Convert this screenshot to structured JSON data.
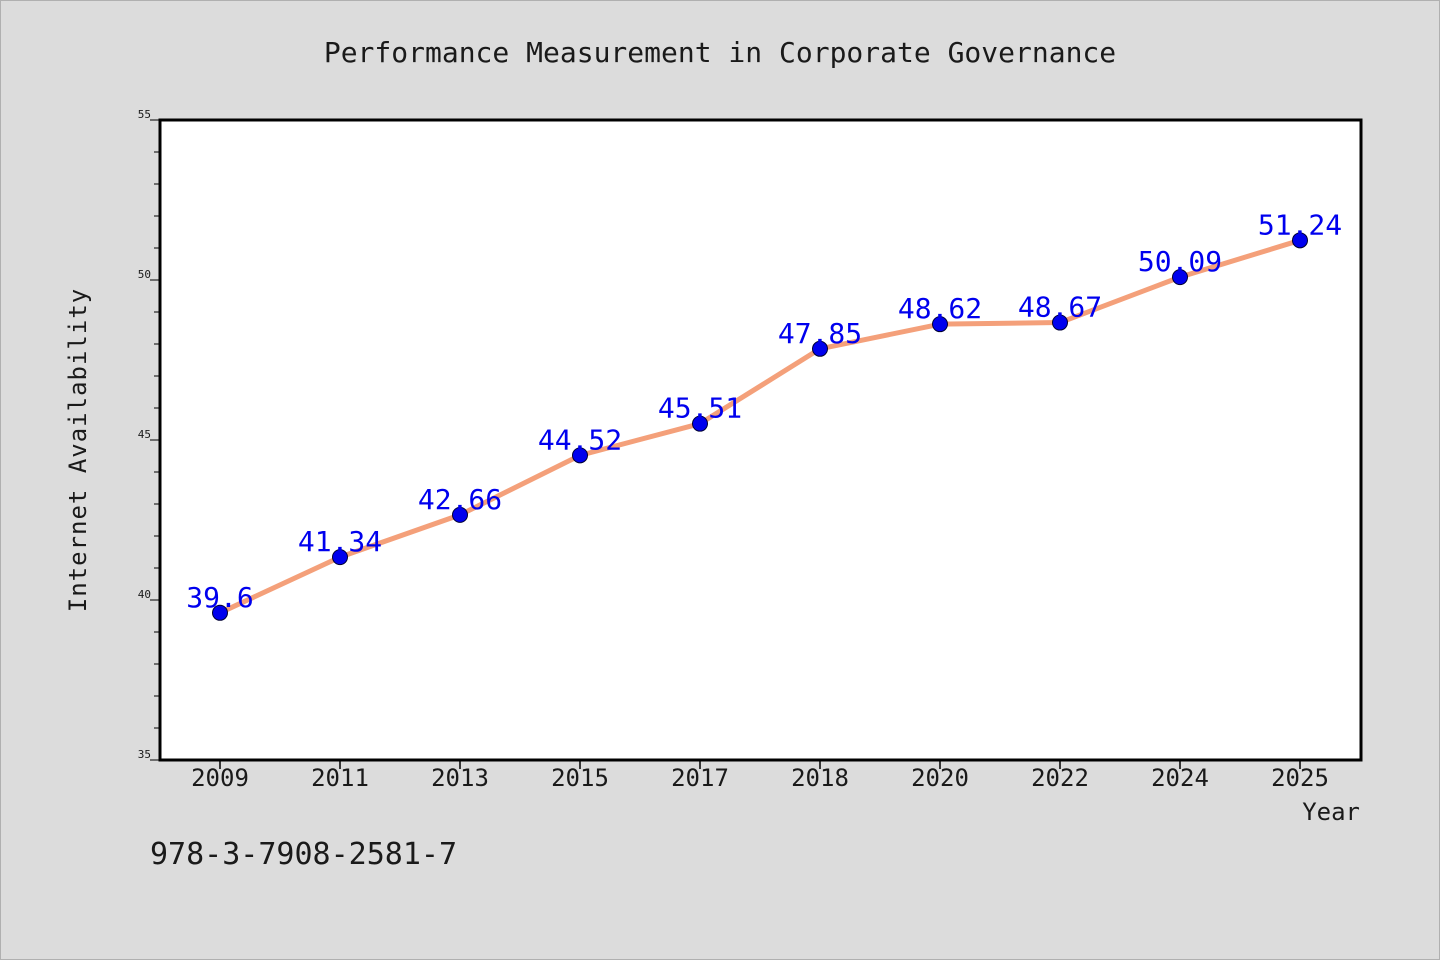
{
  "colors": {
    "background": "#dcdcdc",
    "plot_background": "#ffffff",
    "line": "#f4a07a",
    "marker": "#0000ee",
    "data_label": "#0000ee",
    "text": "#1a1a1a"
  },
  "footer_text": "978-3-7908-2581-7",
  "chart_data": {
    "type": "line",
    "title": "Performance Measurement in Corporate Governance",
    "xlabel": "Year",
    "ylabel": "Internet Availability",
    "categories": [
      "2009",
      "2011",
      "2013",
      "2015",
      "2017",
      "2018",
      "2020",
      "2022",
      "2024",
      "2025"
    ],
    "series": [
      {
        "values": [
          39.6,
          41.34,
          42.66,
          44.52,
          45.51,
          47.85,
          48.62,
          48.67,
          50.09,
          51.24
        ],
        "labels": [
          "39.6",
          "41.34",
          "42.66",
          "44.52",
          "45.51",
          "47.85",
          "48.62",
          "48.67",
          "50.09",
          "51.24"
        ]
      }
    ],
    "ylim": [
      35,
      55
    ],
    "yticks": [
      35,
      40,
      45,
      50,
      55
    ],
    "yticks_minor_step": 1,
    "grid": false,
    "legend": "none"
  }
}
